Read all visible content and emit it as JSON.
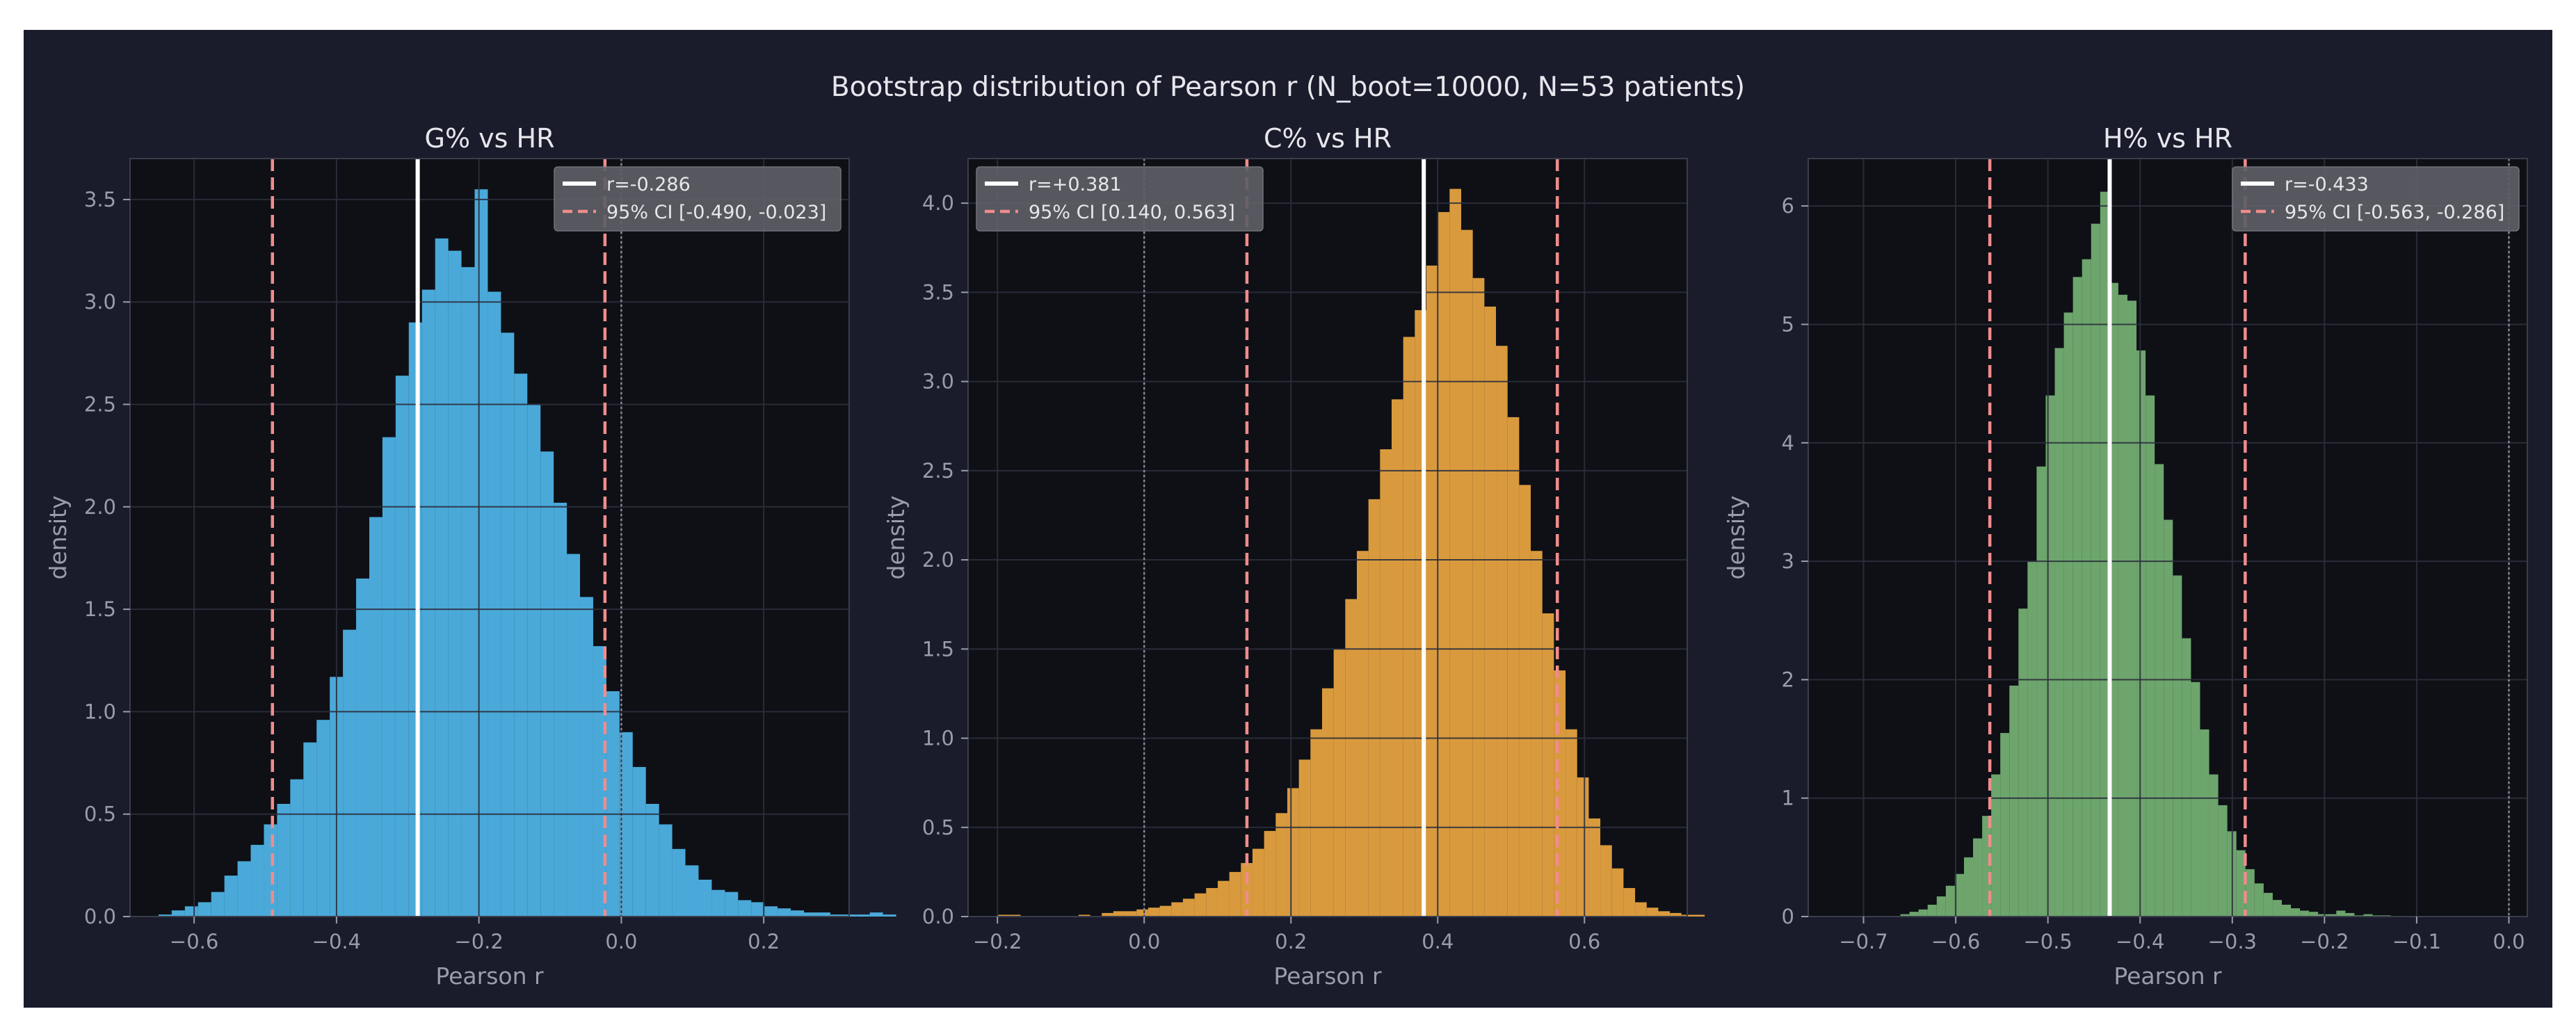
{
  "suptitle": "Bootstrap distribution of Pearson r (N_boot=10000, N=53 patients)",
  "chart_data": [
    {
      "type": "histogram",
      "title": "G% vs HR",
      "xlabel": "Pearson r",
      "ylabel": "density",
      "xlim": [
        -0.69,
        0.32
      ],
      "ylim": [
        0,
        3.7
      ],
      "xticks": [
        -0.6,
        -0.4,
        -0.2,
        0.0,
        0.2
      ],
      "yticks": [
        0.0,
        0.5,
        1.0,
        1.5,
        2.0,
        2.5,
        3.0,
        3.5
      ],
      "grid": true,
      "bar_color": "#4aa9d9",
      "bin_start": -0.65,
      "bin_width": 0.0185,
      "densities": [
        0.01,
        0.03,
        0.05,
        0.07,
        0.12,
        0.2,
        0.27,
        0.35,
        0.45,
        0.55,
        0.67,
        0.85,
        0.96,
        1.17,
        1.4,
        1.65,
        1.95,
        2.34,
        2.64,
        2.9,
        3.06,
        3.31,
        3.25,
        3.17,
        3.55,
        3.05,
        2.85,
        2.65,
        2.5,
        2.27,
        2.02,
        1.77,
        1.56,
        1.32,
        1.1,
        0.9,
        0.73,
        0.55,
        0.45,
        0.33,
        0.25,
        0.18,
        0.13,
        0.12,
        0.08,
        0.07,
        0.05,
        0.04,
        0.03,
        0.02,
        0.02,
        0.01,
        0.01,
        0.01,
        0.02,
        0.01
      ],
      "point_estimate": -0.286,
      "ci": [
        -0.49,
        -0.023
      ],
      "zero_line": 0.0,
      "legend": {
        "position": "top-right",
        "entries": [
          "r=-0.286",
          "95% CI [-0.490, -0.023]"
        ]
      }
    },
    {
      "type": "histogram",
      "title": "C% vs HR",
      "xlabel": "Pearson r",
      "ylabel": "density",
      "xlim": [
        -0.24,
        0.74
      ],
      "ylim": [
        0,
        4.25
      ],
      "xticks": [
        -0.2,
        0.0,
        0.2,
        0.4,
        0.6
      ],
      "yticks": [
        0.0,
        0.5,
        1.0,
        1.5,
        2.0,
        2.5,
        3.0,
        3.5,
        4.0
      ],
      "grid": true,
      "bar_color": "#d99a3e",
      "bin_start": -0.2,
      "bin_width": 0.0158,
      "densities": [
        0.01,
        0.01,
        0.0,
        0.0,
        0.0,
        0.0,
        0.0,
        0.01,
        0.0,
        0.02,
        0.03,
        0.03,
        0.04,
        0.05,
        0.06,
        0.08,
        0.1,
        0.13,
        0.16,
        0.2,
        0.25,
        0.3,
        0.38,
        0.48,
        0.58,
        0.72,
        0.88,
        1.05,
        1.28,
        1.5,
        1.78,
        2.05,
        2.34,
        2.62,
        2.9,
        3.25,
        3.4,
        3.65,
        3.95,
        4.08,
        3.85,
        3.58,
        3.42,
        3.2,
        2.8,
        2.42,
        2.05,
        1.7,
        1.38,
        1.05,
        0.78,
        0.55,
        0.4,
        0.27,
        0.16,
        0.08,
        0.05,
        0.03,
        0.02,
        0.01,
        0.01
      ],
      "point_estimate": 0.381,
      "ci": [
        0.14,
        0.563
      ],
      "zero_line": 0.0,
      "legend": {
        "position": "top-left",
        "entries": [
          "r=+0.381",
          "95% CI [0.140, 0.563]"
        ]
      }
    },
    {
      "type": "histogram",
      "title": "H% vs HR",
      "xlabel": "Pearson r",
      "ylabel": "density",
      "xlim": [
        -0.76,
        0.02
      ],
      "ylim": [
        0,
        6.4
      ],
      "xticks": [
        -0.7,
        -0.6,
        -0.5,
        -0.4,
        -0.3,
        -0.2,
        -0.1,
        0.0
      ],
      "yticks": [
        0,
        1,
        2,
        3,
        4,
        5,
        6
      ],
      "grid": true,
      "bar_color": "#6da56d",
      "bin_start": -0.66,
      "bin_width": 0.00985,
      "densities": [
        0.02,
        0.04,
        0.06,
        0.1,
        0.17,
        0.26,
        0.36,
        0.5,
        0.66,
        0.85,
        1.2,
        1.55,
        1.95,
        2.6,
        3.0,
        3.8,
        4.4,
        4.8,
        5.1,
        5.4,
        5.55,
        5.85,
        6.12,
        5.35,
        5.25,
        5.2,
        4.78,
        4.4,
        3.82,
        3.35,
        2.88,
        2.35,
        1.98,
        1.58,
        1.2,
        0.94,
        0.72,
        0.56,
        0.4,
        0.28,
        0.2,
        0.14,
        0.1,
        0.07,
        0.05,
        0.04,
        0.02,
        0.02,
        0.05,
        0.03,
        0.01,
        0.02,
        0.01,
        0.01
      ],
      "point_estimate": -0.433,
      "ci": [
        -0.563,
        -0.286
      ],
      "zero_line": 0.0,
      "legend": {
        "position": "top-right",
        "entries": [
          "r=-0.433",
          "95% CI [-0.563, -0.286]"
        ]
      }
    }
  ],
  "colors": {
    "figure_bg": "#1a1c2c",
    "axes_bg": "#0e1016",
    "grid": "#2c2f3c",
    "text": "#e6e6ec",
    "tick_text": "#9a9caa",
    "estimate_line": "#ffffff",
    "ci_line": "#f08c8c",
    "zero_line": "#8a8c9a",
    "legend_bg": "#5e5f66"
  }
}
